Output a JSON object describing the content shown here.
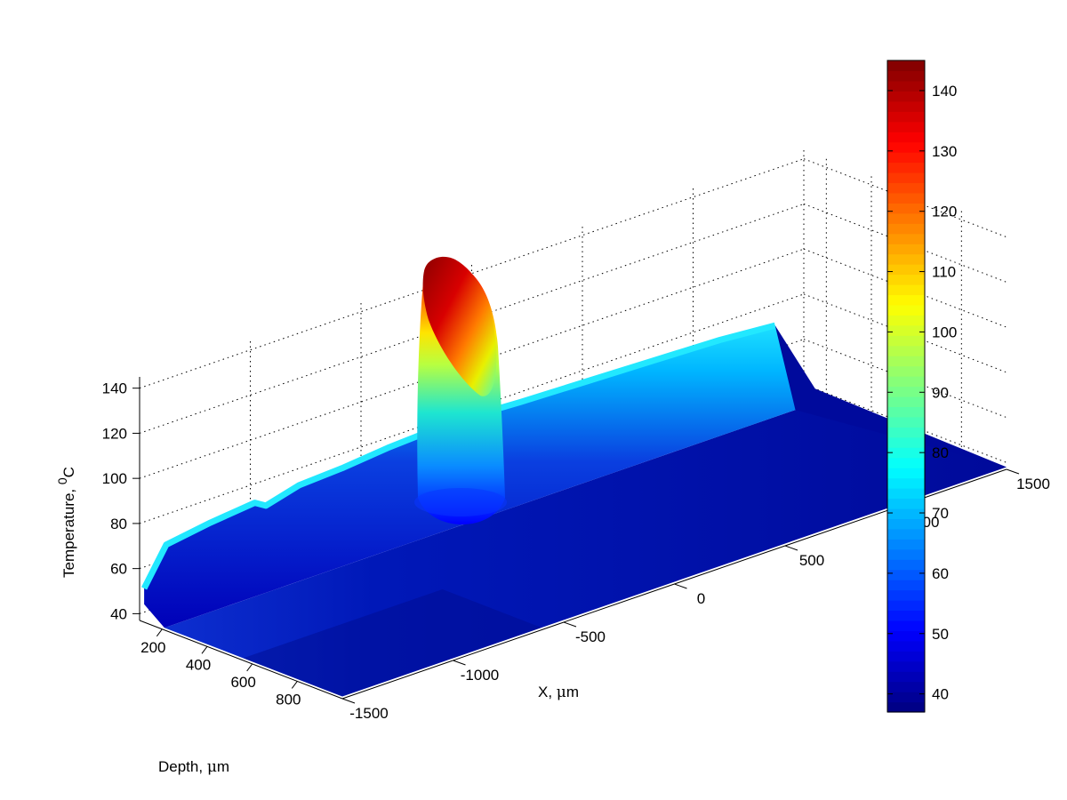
{
  "chart_data": {
    "type": "surface3d",
    "colormap": "jet",
    "grid": true,
    "legend": "colorbar-right",
    "x_axis": {
      "label": "X, ",
      "label_mu": "μ",
      "label_unit": "m",
      "range": [
        -1500,
        1500
      ],
      "ticks": [
        -1500,
        -1000,
        -500,
        0,
        500,
        1000,
        1500
      ],
      "tick_labels": [
        "-1500",
        "-1000",
        "-500",
        "0",
        "500",
        "1000",
        "1500"
      ]
    },
    "depth_axis": {
      "label": "Depth, ",
      "label_mu": "μ",
      "label_unit": "m",
      "range": [
        100,
        1000
      ],
      "ticks": [
        200,
        400,
        600,
        800
      ],
      "tick_labels": [
        "200",
        "400",
        "600",
        "800"
      ]
    },
    "z_axis": {
      "label": "Temperature, ",
      "label_sup": "0",
      "label_unit": "C",
      "range": [
        37,
        145
      ],
      "ticks": [
        40,
        60,
        80,
        100,
        120,
        140
      ],
      "tick_labels": [
        "40",
        "60",
        "80",
        "100",
        "120",
        "140"
      ]
    },
    "colorbar": {
      "range": [
        37,
        145
      ],
      "ticks": [
        40,
        50,
        60,
        70,
        80,
        90,
        100,
        110,
        120,
        130,
        140
      ],
      "tick_labels": [
        "40",
        "50",
        "60",
        "70",
        "80",
        "90",
        "100",
        "110",
        "120",
        "130",
        "140"
      ]
    },
    "surface": {
      "baseline_temperature": 38,
      "surface_edge_temperature": [
        {
          "x": -1500,
          "t": 52
        },
        {
          "x": -1400,
          "t": 68
        },
        {
          "x": -1200,
          "t": 71
        },
        {
          "x": -1000,
          "t": 73
        },
        {
          "x": -950,
          "t": 70
        },
        {
          "x": -800,
          "t": 74
        },
        {
          "x": -600,
          "t": 75
        },
        {
          "x": -400,
          "t": 77
        },
        {
          "x": -200,
          "t": 78
        },
        {
          "x": 0,
          "t": 78
        },
        {
          "x": 200,
          "t": 77
        },
        {
          "x": 500,
          "t": 76
        },
        {
          "x": 800,
          "t": 75
        },
        {
          "x": 1100,
          "t": 74
        },
        {
          "x": 1350,
          "t": 72
        }
      ],
      "hot_spot": {
        "x": 0,
        "depth": 500,
        "peak": 145
      }
    }
  }
}
